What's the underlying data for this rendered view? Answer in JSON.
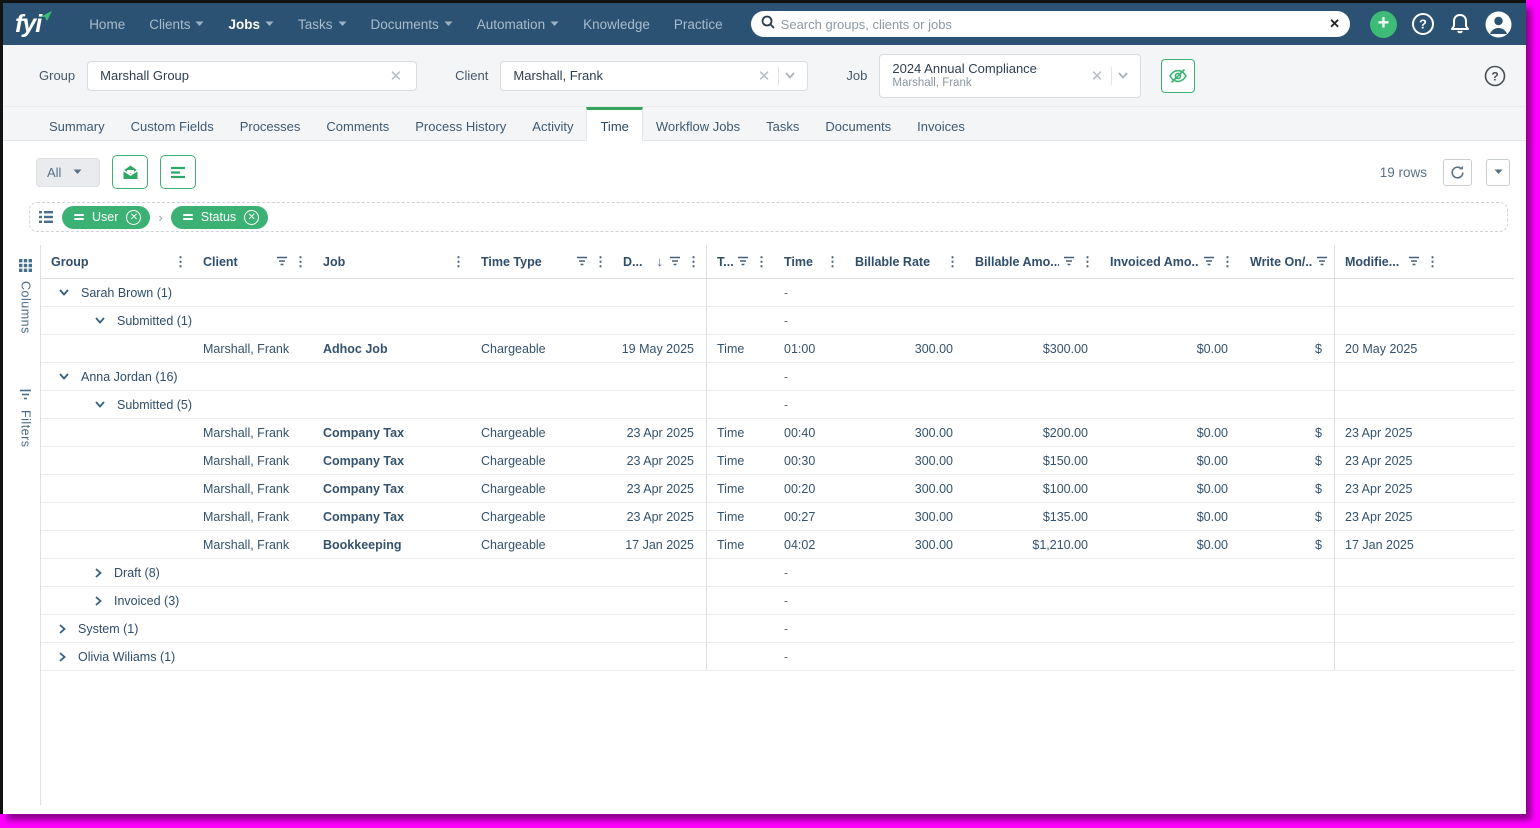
{
  "colors": {
    "nav_bg": "#2b5273",
    "accent_green": "#3bb273",
    "active_tab_green": "#34a65c",
    "header_text": "#2e4e6b",
    "frame_magenta": "#ff00ff"
  },
  "nav": {
    "logo_text": "fyi",
    "items": [
      {
        "label": "Home",
        "dropdown": false,
        "active": false
      },
      {
        "label": "Clients",
        "dropdown": true,
        "active": false
      },
      {
        "label": "Jobs",
        "dropdown": true,
        "active": true
      },
      {
        "label": "Tasks",
        "dropdown": true,
        "active": false
      },
      {
        "label": "Documents",
        "dropdown": true,
        "active": false
      },
      {
        "label": "Automation",
        "dropdown": true,
        "active": false
      },
      {
        "label": "Knowledge",
        "dropdown": false,
        "active": false
      },
      {
        "label": "Practice",
        "dropdown": false,
        "active": false
      }
    ],
    "search_placeholder": "Search groups, clients or jobs"
  },
  "context_bar": {
    "group_label": "Group",
    "group_value": "Marshall Group",
    "client_label": "Client",
    "client_value": "Marshall, Frank",
    "job_label": "Job",
    "job_value": "2024 Annual Compliance",
    "job_subvalue": "Marshall, Frank"
  },
  "tabs": [
    "Summary",
    "Custom Fields",
    "Processes",
    "Comments",
    "Process History",
    "Activity",
    "Time",
    "Workflow Jobs",
    "Tasks",
    "Documents",
    "Invoices"
  ],
  "active_tab": "Time",
  "toolbar": {
    "view_filter_value": "All",
    "rows_count": "19 rows"
  },
  "group_by_chips": [
    "User",
    "Status"
  ],
  "side_panel": {
    "columns_label": "Columns",
    "filters_label": "Filters"
  },
  "table": {
    "columns": [
      {
        "label": "Group",
        "sort": false,
        "filter": false,
        "menu": true
      },
      {
        "label": "Client",
        "sort": false,
        "filter": true,
        "menu": true
      },
      {
        "label": "Job",
        "sort": false,
        "filter": false,
        "menu": true
      },
      {
        "label": "Time Type",
        "sort": false,
        "filter": true,
        "menu": true
      },
      {
        "label": "D...",
        "sort": true,
        "filter": true,
        "menu": true
      },
      {
        "label": "T...",
        "sort": false,
        "filter": true,
        "menu": true
      },
      {
        "label": "Time",
        "sort": false,
        "filter": false,
        "menu": true
      },
      {
        "label": "Billable Rate",
        "sort": false,
        "filter": false,
        "menu": true
      },
      {
        "label": "Billable Amo...",
        "sort": false,
        "filter": true,
        "menu": true
      },
      {
        "label": "Invoiced Amo...",
        "sort": false,
        "filter": true,
        "menu": true
      },
      {
        "label": "Write On/...",
        "sort": false,
        "filter": true,
        "menu": false
      },
      {
        "label": "Modifie...",
        "sort": false,
        "filter": true,
        "menu": true
      }
    ],
    "rows": [
      {
        "type": "group",
        "level": 0,
        "expanded": true,
        "label": "Sarah Brown (1)",
        "time": "-"
      },
      {
        "type": "group",
        "level": 1,
        "expanded": true,
        "label": "Submitted (1)",
        "time": "-"
      },
      {
        "type": "data",
        "client": "Marshall, Frank",
        "job": "Adhoc Job",
        "time_type": "Chargeable",
        "date": "19 May 2025",
        "t": "Time",
        "time": "01:00",
        "billable_rate": "300.00",
        "billable_amount": "$300.00",
        "invoiced_amount": "$0.00",
        "write_on": "$",
        "modified": "20 May 2025"
      },
      {
        "type": "group",
        "level": 0,
        "expanded": true,
        "label": "Anna Jordan (16)",
        "time": "-"
      },
      {
        "type": "group",
        "level": 1,
        "expanded": true,
        "label": "Submitted (5)",
        "time": "-"
      },
      {
        "type": "data",
        "client": "Marshall, Frank",
        "job": "Company Tax",
        "time_type": "Chargeable",
        "date": "23 Apr 2025",
        "t": "Time",
        "time": "00:40",
        "billable_rate": "300.00",
        "billable_amount": "$200.00",
        "invoiced_amount": "$0.00",
        "write_on": "$",
        "modified": "23 Apr 2025"
      },
      {
        "type": "data",
        "client": "Marshall, Frank",
        "job": "Company Tax",
        "time_type": "Chargeable",
        "date": "23 Apr 2025",
        "t": "Time",
        "time": "00:30",
        "billable_rate": "300.00",
        "billable_amount": "$150.00",
        "invoiced_amount": "$0.00",
        "write_on": "$",
        "modified": "23 Apr 2025"
      },
      {
        "type": "data",
        "client": "Marshall, Frank",
        "job": "Company Tax",
        "time_type": "Chargeable",
        "date": "23 Apr 2025",
        "t": "Time",
        "time": "00:20",
        "billable_rate": "300.00",
        "billable_amount": "$100.00",
        "invoiced_amount": "$0.00",
        "write_on": "$",
        "modified": "23 Apr 2025"
      },
      {
        "type": "data",
        "client": "Marshall, Frank",
        "job": "Company Tax",
        "time_type": "Chargeable",
        "date": "23 Apr 2025",
        "t": "Time",
        "time": "00:27",
        "billable_rate": "300.00",
        "billable_amount": "$135.00",
        "invoiced_amount": "$0.00",
        "write_on": "$",
        "modified": "23 Apr 2025"
      },
      {
        "type": "data",
        "client": "Marshall, Frank",
        "job": "Bookkeeping",
        "time_type": "Chargeable",
        "date": "17 Jan 2025",
        "t": "Time",
        "time": "04:02",
        "billable_rate": "300.00",
        "billable_amount": "$1,210.00",
        "invoiced_amount": "$0.00",
        "write_on": "$",
        "modified": "17 Jan 2025"
      },
      {
        "type": "group",
        "level": 1,
        "expanded": false,
        "label": "Draft (8)",
        "time": "-"
      },
      {
        "type": "group",
        "level": 1,
        "expanded": false,
        "label": "Invoiced (3)",
        "time": "-"
      },
      {
        "type": "group",
        "level": 0,
        "expanded": false,
        "label": "System (1)",
        "time": "-"
      },
      {
        "type": "group",
        "level": 0,
        "expanded": false,
        "label": "Olivia Wiliams (1)",
        "time": "-"
      }
    ]
  }
}
